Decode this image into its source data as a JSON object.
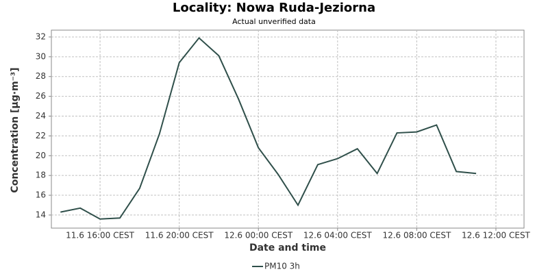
{
  "chart_data": {
    "type": "line",
    "title": "Locality: Nowa Ruda-Jeziorna",
    "subtitle": "Actual unverified data",
    "x_label": "Date and time",
    "y_label": "Concentration [µg·m⁻³]",
    "x": [
      14,
      15,
      16,
      17,
      18,
      19,
      20,
      21,
      22,
      23,
      24,
      25,
      26,
      27,
      28,
      29,
      30,
      31,
      32,
      33,
      34,
      35
    ],
    "series": [
      {
        "name": "PM10 3h",
        "color": "#2f4f4a",
        "values": [
          14.3,
          14.7,
          13.6,
          13.7,
          16.7,
          22.2,
          29.4,
          31.9,
          30.1,
          25.7,
          20.8,
          18.1,
          15.0,
          19.1,
          19.7,
          20.7,
          18.2,
          22.3,
          22.4,
          23.1,
          18.4,
          18.2
        ]
      }
    ],
    "xlim": [
      13.54,
      37.42
    ],
    "xticks": [
      {
        "value": 16,
        "label": "11.6 16:00 CEST"
      },
      {
        "value": 20,
        "label": "11.6 20:00 CEST"
      },
      {
        "value": 24,
        "label": "12.6 00:00 CEST"
      },
      {
        "value": 28,
        "label": "12.6 04:00 CEST"
      },
      {
        "value": 32,
        "label": "12.6 08:00 CEST"
      },
      {
        "value": 36,
        "label": "12.6 12:00 CEST"
      }
    ],
    "ylim": [
      12.68,
      32.69
    ],
    "yticks": [
      14,
      16,
      18,
      20,
      22,
      24,
      26,
      28,
      30,
      32
    ],
    "grid": true
  }
}
